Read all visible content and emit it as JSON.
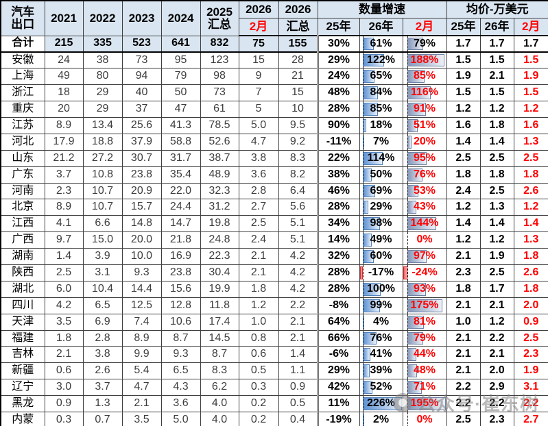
{
  "header": {
    "row_label_line1": "汽车",
    "row_label_line2": "出口",
    "years": [
      "2021",
      "2022",
      "2023",
      "2024"
    ],
    "col2025_line1": "2025",
    "col2025_line2": "汇总",
    "col2026_feb_top": "2026",
    "col2026_feb_sub": "2月",
    "col2026_tot_top": "2026",
    "col2026_tot_sub": "汇总",
    "growth_group": "数量增速",
    "price_group": "均价-万美元",
    "growth_sub": [
      "25年",
      "26年",
      "2月"
    ],
    "price_sub": [
      "25年",
      "26年",
      "2月"
    ]
  },
  "colors": {
    "header_bg": "#D9E5F1",
    "accent_red": "#FF0000",
    "bar_blue": "#4F81BD",
    "bar_slate": "#6F81A5",
    "bar_negative": "#D92B2B"
  },
  "watermark": {
    "text": "公众号·崔东树"
  },
  "chart_data": {
    "type": "table",
    "columns": [
      "汽车出口",
      "2021",
      "2022",
      "2023",
      "2024",
      "2025汇总",
      "2026-2月",
      "2026汇总",
      "数量增速-25年",
      "数量增速-26年",
      "数量增速-2月",
      "均价-25年",
      "均价-26年",
      "均价-2月"
    ],
    "bar_scales": {
      "g26": {
        "axis_pct": 8,
        "max": 226
      },
      "gfeb": {
        "axis_pct": 11,
        "max": 195
      }
    },
    "rows": [
      {
        "total": true,
        "label": "合计",
        "y2021": "215",
        "y2022": "335",
        "y2023": "523",
        "y2024": "641",
        "y2025": "832",
        "feb2026": "75",
        "tot2026": "155",
        "g25": "30%",
        "g26": "61%",
        "gfeb": "79%",
        "p25": "1.7",
        "p26": "1.7",
        "pfeb": "1.7"
      },
      {
        "total": false,
        "label": "安徽",
        "y2021": "24",
        "y2022": "38",
        "y2023": "73",
        "y2024": "95",
        "y2025": "123",
        "feb2026": "15",
        "tot2026": "28",
        "g25": "29%",
        "g26": "122%",
        "gfeb": "188%",
        "p25": "1.5",
        "p26": "1.5",
        "pfeb": "1.5"
      },
      {
        "total": false,
        "label": "上海",
        "y2021": "49",
        "y2022": "80",
        "y2023": "94",
        "y2024": "79",
        "y2025": "98",
        "feb2026": "9",
        "tot2026": "21",
        "g25": "24%",
        "g26": "65%",
        "gfeb": "85%",
        "p25": "1.9",
        "p26": "2.1",
        "pfeb": "1.9"
      },
      {
        "total": false,
        "label": "浙江",
        "y2021": "18",
        "y2022": "29",
        "y2023": "40",
        "y2024": "50",
        "y2025": "73",
        "feb2026": "7",
        "tot2026": "15",
        "g25": "48%",
        "g26": "84%",
        "gfeb": "116%",
        "p25": "1.5",
        "p26": "1.5",
        "pfeb": "1.5"
      },
      {
        "total": false,
        "label": "重庆",
        "y2021": "20",
        "y2022": "29",
        "y2023": "37",
        "y2024": "47",
        "y2025": "61",
        "feb2026": "5",
        "tot2026": "10",
        "g25": "28%",
        "g26": "85%",
        "gfeb": "91%",
        "p25": "1.2",
        "p26": "1.2",
        "pfeb": "1.2"
      },
      {
        "total": false,
        "label": "江苏",
        "y2021": "8.9",
        "y2022": "13.4",
        "y2023": "25.6",
        "y2024": "41.3",
        "y2025": "78.5",
        "feb2026": "5.0",
        "tot2026": "9.5",
        "g25": "90%",
        "g26": "18%",
        "gfeb": "51%",
        "p25": "1.6",
        "p26": "1.8",
        "pfeb": "1.6"
      },
      {
        "total": false,
        "label": "河北",
        "y2021": "17.9",
        "y2022": "18.8",
        "y2023": "37.9",
        "y2024": "58.8",
        "y2025": "52.6",
        "feb2026": "4.7",
        "tot2026": "9.2",
        "g25": "-11%",
        "g26": "7%",
        "gfeb": "20%",
        "p25": "1.4",
        "p26": "1.4",
        "pfeb": "1.3"
      },
      {
        "total": false,
        "label": "山东",
        "y2021": "21.2",
        "y2022": "27.2",
        "y2023": "30.7",
        "y2024": "31.7",
        "y2025": "38.7",
        "feb2026": "3.8",
        "tot2026": "8.3",
        "g25": "22%",
        "g26": "114%",
        "gfeb": "95%",
        "p25": "2.5",
        "p26": "2.5",
        "pfeb": "2.5"
      },
      {
        "total": false,
        "label": "广东",
        "y2021": "3.7",
        "y2022": "10.8",
        "y2023": "23.8",
        "y2024": "35.4",
        "y2025": "48.9",
        "feb2026": "3.6",
        "tot2026": "8.2",
        "g25": "38%",
        "g26": "50%",
        "gfeb": "76%",
        "p25": "1.8",
        "p26": "1.8",
        "pfeb": "1.8"
      },
      {
        "total": false,
        "label": "河南",
        "y2021": "2.3",
        "y2022": "10.7",
        "y2023": "20.9",
        "y2024": "22.0",
        "y2025": "32.3",
        "feb2026": "2.8",
        "tot2026": "6.4",
        "g25": "46%",
        "g26": "69%",
        "gfeb": "53%",
        "p25": "2.4",
        "p26": "2.5",
        "pfeb": "2.6"
      },
      {
        "total": false,
        "label": "北京",
        "y2021": "8.9",
        "y2022": "10.7",
        "y2023": "15.7",
        "y2024": "24.4",
        "y2025": "31.2",
        "feb2026": "2.7",
        "tot2026": "5.6",
        "g25": "28%",
        "g26": "29%",
        "gfeb": "43%",
        "p25": "1.2",
        "p26": "1.3",
        "pfeb": "1.2"
      },
      {
        "total": false,
        "label": "江西",
        "y2021": "4.1",
        "y2022": "6.6",
        "y2023": "14.8",
        "y2024": "14.7",
        "y2025": "19.8",
        "feb2026": "2.5",
        "tot2026": "5.1",
        "g25": "34%",
        "g26": "98%",
        "gfeb": "144%",
        "p25": "1.4",
        "p26": "1.4",
        "pfeb": "1.4"
      },
      {
        "total": false,
        "label": "广西",
        "y2021": "9.7",
        "y2022": "15.0",
        "y2023": "20.0",
        "y2024": "21.8",
        "y2025": "24.8",
        "feb2026": "2.4",
        "tot2026": "5.1",
        "g25": "14%",
        "g26": "49%",
        "gfeb": "0%",
        "p25": "1.2",
        "p26": "1.2",
        "pfeb": "1.3"
      },
      {
        "total": false,
        "label": "湖南",
        "y2021": "1.4",
        "y2022": "3.9",
        "y2023": "10.0",
        "y2024": "16.9",
        "y2025": "22.3",
        "feb2026": "2.1",
        "tot2026": "4.2",
        "g25": "32%",
        "g26": "60%",
        "gfeb": "97%",
        "p25": "2.1",
        "p26": "1.9",
        "pfeb": "1.8"
      },
      {
        "total": false,
        "label": "陕西",
        "y2021": "2.5",
        "y2022": "3.1",
        "y2023": "9.3",
        "y2024": "23.8",
        "y2025": "30.4",
        "feb2026": "2.1",
        "tot2026": "4.2",
        "g25": "28%",
        "g26": "-17%",
        "gfeb": "-24%",
        "p25": "2.3",
        "p26": "2.5",
        "pfeb": "2.6"
      },
      {
        "total": false,
        "label": "湖北",
        "y2021": "6.0",
        "y2022": "10.4",
        "y2023": "14.4",
        "y2024": "15.6",
        "y2025": "19.9",
        "feb2026": "1.8",
        "tot2026": "4.2",
        "g25": "28%",
        "g26": "100%",
        "gfeb": "93%",
        "p25": "1.8",
        "p26": "1.7",
        "pfeb": "1.8"
      },
      {
        "total": false,
        "label": "四川",
        "y2021": "4.2",
        "y2022": "6.5",
        "y2023": "12.5",
        "y2024": "12.8",
        "y2025": "11.8",
        "feb2026": "1.2",
        "tot2026": "2.2",
        "g25": "-8%",
        "g26": "99%",
        "gfeb": "175%",
        "p25": "2.1",
        "p26": "2.1",
        "pfeb": "2.0"
      },
      {
        "total": false,
        "label": "天津",
        "y2021": "3.5",
        "y2022": "6.9",
        "y2023": "7.4",
        "y2024": "10.6",
        "y2025": "17.4",
        "feb2026": "1.0",
        "tot2026": "2.1",
        "g25": "64%",
        "g26": "4%",
        "gfeb": "81%",
        "p25": "1.0",
        "p26": "1.2",
        "pfeb": "0.9"
      },
      {
        "total": false,
        "label": "福建",
        "y2021": "1.8",
        "y2022": "2.8",
        "y2023": "8.9",
        "y2024": "8.7",
        "y2025": "14.5",
        "feb2026": "0.8",
        "tot2026": "2.1",
        "g25": "66%",
        "g26": "76%",
        "gfeb": "79%",
        "p25": "2.1",
        "p26": "2.2",
        "pfeb": "2.5"
      },
      {
        "total": false,
        "label": "吉林",
        "y2021": "2.1",
        "y2022": "3.8",
        "y2023": "9.9",
        "y2024": "9.3",
        "y2025": "8.7",
        "feb2026": "0.6",
        "tot2026": "1.4",
        "g25": "-6%",
        "g26": "41%",
        "gfeb": "44%",
        "p25": "2.1",
        "p26": "2.1",
        "pfeb": "2.3"
      },
      {
        "total": false,
        "label": "新疆",
        "y2021": "0.6",
        "y2022": "2.6",
        "y2023": "5.4",
        "y2024": "6.5",
        "y2025": "8.3",
        "feb2026": "0.5",
        "tot2026": "1.1",
        "g25": "29%",
        "g26": "39%",
        "gfeb": "48%",
        "p25": "2.1",
        "p26": "2.0",
        "pfeb": "1.9"
      },
      {
        "total": false,
        "label": "辽宁",
        "y2021": "3.0",
        "y2022": "3.7",
        "y2023": "4.7",
        "y2024": "4.3",
        "y2025": "6.2",
        "feb2026": "0.3",
        "tot2026": "0.9",
        "g25": "42%",
        "g26": "52%",
        "gfeb": "71%",
        "p25": "2.2",
        "p26": "2.9",
        "pfeb": "3.1"
      },
      {
        "total": false,
        "label": "黑龙",
        "y2021": "0.9",
        "y2022": "1.3",
        "y2023": "2.1",
        "y2024": "3.6",
        "y2025": "4.0",
        "feb2026": "0.2",
        "tot2026": "0.5",
        "g25": "11%",
        "g26": "226%",
        "gfeb": "195%",
        "p25": "2.2",
        "p26": "2.2",
        "pfeb": "2.2"
      },
      {
        "total": false,
        "label": "内蒙",
        "y2021": "0.3",
        "y2022": "0.7",
        "y2023": "3.5",
        "y2024": "5.0",
        "y2025": "4.0",
        "feb2026": "0.2",
        "tot2026": "0.4",
        "g25": "-19%",
        "g26": "2%",
        "gfeb": "0%",
        "p25": "2.5",
        "p26": "2.3",
        "pfeb": "2.7"
      }
    ]
  }
}
